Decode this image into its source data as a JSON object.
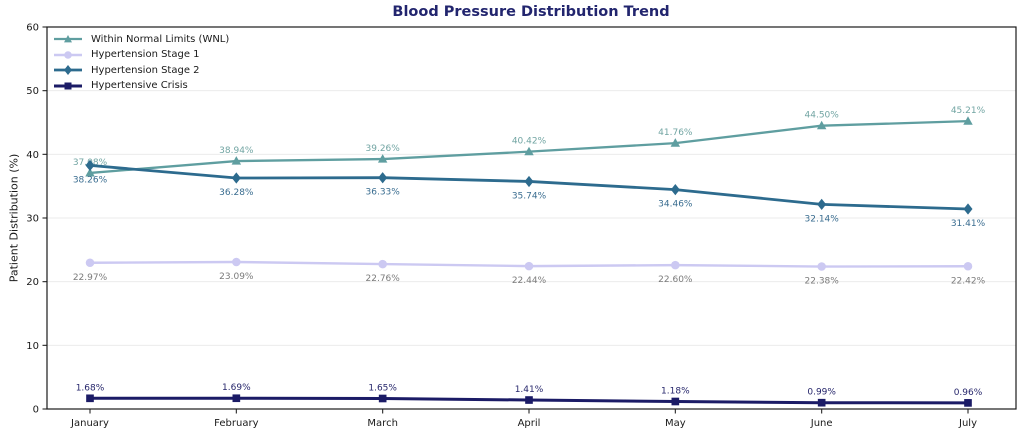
{
  "chart_data": {
    "type": "line",
    "title": "Blood Pressure Distribution Trend",
    "xlabel": "",
    "ylabel": "Patient Distribution (%)",
    "ylim": [
      0,
      60
    ],
    "yticks": [
      0,
      10,
      20,
      30,
      40,
      50,
      60
    ],
    "grid": "horizontal-faint",
    "legend_position": "top-left-inside",
    "categories": [
      "January",
      "February",
      "March",
      "April",
      "May",
      "June",
      "July"
    ],
    "series": [
      {
        "name": "Within Normal Limits (WNL)",
        "color": "#5f9ea0",
        "label_color": "#72a5a3",
        "marker": "triangle",
        "label_position": "above",
        "values": [
          37.08,
          38.94,
          39.26,
          40.42,
          41.76,
          44.5,
          45.21
        ],
        "labels": [
          "37.08%",
          "38.94%",
          "39.26%",
          "40.42%",
          "41.76%",
          "44.50%",
          "45.21%"
        ]
      },
      {
        "name": "Hypertension Stage 1",
        "color": "#ccc9f2",
        "label_color": "#7b7b7b",
        "marker": "circle",
        "label_position": "below",
        "values": [
          22.97,
          23.09,
          22.76,
          22.44,
          22.6,
          22.38,
          22.42
        ],
        "labels": [
          "22.97%",
          "23.09%",
          "22.76%",
          "22.44%",
          "22.60%",
          "22.38%",
          "22.42%"
        ]
      },
      {
        "name": "Hypertension Stage 2",
        "color": "#2d6b8e",
        "label_color": "#3a6d90",
        "marker": "diamond",
        "label_position": "below",
        "values": [
          38.26,
          36.28,
          36.33,
          35.74,
          34.46,
          32.14,
          31.41
        ],
        "labels": [
          "38.26%",
          "36.28%",
          "36.33%",
          "35.74%",
          "34.46%",
          "32.14%",
          "31.41%"
        ]
      },
      {
        "name": "Hypertensive Crisis",
        "color": "#1b1b66",
        "label_color": "#26266b",
        "marker": "square",
        "label_position": "above",
        "values": [
          1.68,
          1.69,
          1.65,
          1.41,
          1.18,
          0.99,
          0.96
        ],
        "labels": [
          "1.68%",
          "1.69%",
          "1.65%",
          "1.41%",
          "1.18%",
          "0.99%",
          "0.96%"
        ]
      }
    ]
  }
}
